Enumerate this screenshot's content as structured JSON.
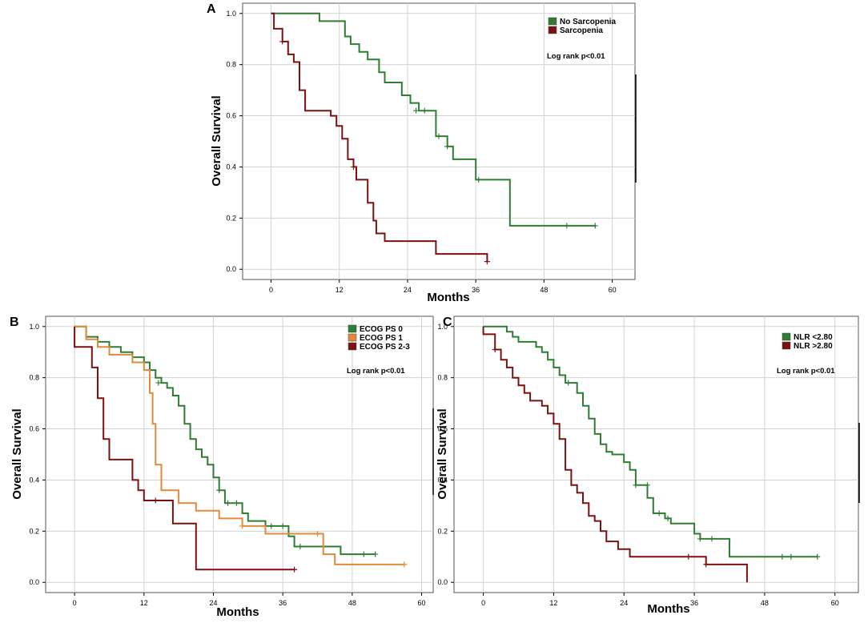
{
  "colors": {
    "green": "#2e7d32",
    "dark_red": "#7b1111",
    "orange": "#e08a3c",
    "grid": "#d2d2d2",
    "frame": "#555555"
  },
  "chart_data": [
    {
      "id": "A",
      "type": "line",
      "subtype": "kaplan-meier",
      "panel_label": "A",
      "xlabel": "Months",
      "ylabel": "Overall Survival",
      "xlim": [
        -5,
        64
      ],
      "ylim": [
        -0.04,
        1.04
      ],
      "xticks": [
        0,
        12,
        24,
        36,
        48,
        60
      ],
      "xtick_labels": [
        "0",
        "12",
        "24",
        "36",
        "48",
        "60"
      ],
      "yticks": [
        0.0,
        0.2,
        0.4,
        0.6,
        0.8,
        1.0
      ],
      "ytick_labels": [
        "0.0",
        "0.2",
        "0.4",
        "0.6",
        "0.8",
        "1.0"
      ],
      "grid": true,
      "legend_position": "top-right",
      "annotation": "Log rank p<0.01",
      "series": [
        {
          "name": "No Sarcopenia",
          "color_key": "green",
          "steps": [
            [
              0,
              1.0
            ],
            [
              8.5,
              0.97
            ],
            [
              13,
              0.91
            ],
            [
              14,
              0.88
            ],
            [
              15.5,
              0.85
            ],
            [
              17,
              0.82
            ],
            [
              19,
              0.77
            ],
            [
              20,
              0.73
            ],
            [
              23,
              0.68
            ],
            [
              24.5,
              0.65
            ],
            [
              26,
              0.62
            ],
            [
              29,
              0.52
            ],
            [
              31,
              0.48
            ],
            [
              32,
              0.43
            ],
            [
              36,
              0.35
            ],
            [
              42,
              0.17
            ],
            [
              57,
              0.17
            ]
          ],
          "censors": [
            [
              25.5,
              0.62
            ],
            [
              27,
              0.62
            ],
            [
              29.5,
              0.52
            ],
            [
              31,
              0.48
            ],
            [
              36.5,
              0.35
            ],
            [
              52,
              0.17
            ],
            [
              57,
              0.17
            ]
          ]
        },
        {
          "name": "Sarcopenia",
          "color_key": "dark_red",
          "steps": [
            [
              0,
              1.0
            ],
            [
              0.5,
              0.94
            ],
            [
              2,
              0.89
            ],
            [
              3,
              0.84
            ],
            [
              4,
              0.81
            ],
            [
              5,
              0.7
            ],
            [
              6,
              0.62
            ],
            [
              10.5,
              0.6
            ],
            [
              11.5,
              0.56
            ],
            [
              12.5,
              0.51
            ],
            [
              13.5,
              0.43
            ],
            [
              14.5,
              0.4
            ],
            [
              15,
              0.35
            ],
            [
              17,
              0.26
            ],
            [
              18,
              0.19
            ],
            [
              18.5,
              0.14
            ],
            [
              20,
              0.11
            ],
            [
              29,
              0.06
            ],
            [
              38,
              0.06
            ],
            [
              38,
              0.03
            ]
          ],
          "censors": [
            [
              2,
              0.89
            ],
            [
              14.5,
              0.4
            ],
            [
              38,
              0.03
            ]
          ]
        }
      ]
    },
    {
      "id": "B",
      "type": "line",
      "subtype": "kaplan-meier",
      "panel_label": "B",
      "xlabel": "Months",
      "ylabel": "Overall Survival",
      "xlim": [
        -5,
        62
      ],
      "ylim": [
        -0.04,
        1.04
      ],
      "xticks": [
        0,
        12,
        24,
        36,
        48,
        60
      ],
      "xtick_labels": [
        "0",
        "12",
        "24",
        "36",
        "48",
        "60"
      ],
      "yticks": [
        0.0,
        0.2,
        0.4,
        0.6,
        0.8,
        1.0
      ],
      "ytick_labels": [
        "0.0",
        "0.2",
        "0.4",
        "0.6",
        "0.8",
        "1.0"
      ],
      "grid": true,
      "legend_position": "top-right",
      "annotation": "Log rank p<0.01",
      "series": [
        {
          "name": "ECOG PS 0",
          "color_key": "green",
          "steps": [
            [
              0,
              1.0
            ],
            [
              2,
              0.96
            ],
            [
              4,
              0.94
            ],
            [
              6,
              0.92
            ],
            [
              8,
              0.9
            ],
            [
              10,
              0.88
            ],
            [
              12,
              0.86
            ],
            [
              13,
              0.83
            ],
            [
              14,
              0.8
            ],
            [
              15,
              0.78
            ],
            [
              16,
              0.76
            ],
            [
              17,
              0.73
            ],
            [
              18,
              0.69
            ],
            [
              19,
              0.62
            ],
            [
              20,
              0.56
            ],
            [
              21,
              0.52
            ],
            [
              22,
              0.49
            ],
            [
              23,
              0.46
            ],
            [
              24,
              0.41
            ],
            [
              25,
              0.36
            ],
            [
              26,
              0.31
            ],
            [
              29,
              0.27
            ],
            [
              30,
              0.24
            ],
            [
              33,
              0.22
            ],
            [
              37,
              0.18
            ],
            [
              38,
              0.14
            ],
            [
              46,
              0.11
            ],
            [
              52,
              0.11
            ]
          ],
          "censors": [
            [
              14.5,
              0.78
            ],
            [
              25,
              0.36
            ],
            [
              26.5,
              0.31
            ],
            [
              28,
              0.31
            ],
            [
              34,
              0.22
            ],
            [
              36,
              0.22
            ],
            [
              39,
              0.14
            ],
            [
              50,
              0.11
            ],
            [
              52,
              0.11
            ]
          ]
        },
        {
          "name": "ECOG PS 1",
          "color_key": "orange",
          "steps": [
            [
              0,
              1.0
            ],
            [
              2,
              0.95
            ],
            [
              4,
              0.92
            ],
            [
              6,
              0.89
            ],
            [
              10,
              0.86
            ],
            [
              12,
              0.83
            ],
            [
              13,
              0.74
            ],
            [
              13.5,
              0.62
            ],
            [
              14,
              0.46
            ],
            [
              15,
              0.36
            ],
            [
              18,
              0.31
            ],
            [
              21,
              0.28
            ],
            [
              25,
              0.25
            ],
            [
              29,
              0.22
            ],
            [
              33,
              0.19
            ],
            [
              43,
              0.11
            ],
            [
              45,
              0.07
            ],
            [
              57,
              0.07
            ]
          ],
          "censors": [
            [
              29,
              0.22
            ],
            [
              42,
              0.19
            ],
            [
              57,
              0.07
            ]
          ]
        },
        {
          "name": "ECOG PS 2-3",
          "color_key": "dark_red",
          "steps": [
            [
              0,
              1.0
            ],
            [
              0,
              0.92
            ],
            [
              3,
              0.84
            ],
            [
              4,
              0.72
            ],
            [
              5,
              0.56
            ],
            [
              6,
              0.48
            ],
            [
              10,
              0.4
            ],
            [
              11,
              0.36
            ],
            [
              12,
              0.32
            ],
            [
              17,
              0.23
            ],
            [
              21,
              0.05
            ],
            [
              38,
              0.05
            ]
          ],
          "censors": [
            [
              14,
              0.32
            ],
            [
              38,
              0.05
            ]
          ]
        }
      ]
    },
    {
      "id": "C",
      "type": "line",
      "subtype": "kaplan-meier",
      "panel_label": "C",
      "xlabel": "Months",
      "ylabel": "Overall Survival",
      "xlim": [
        -5,
        64
      ],
      "ylim": [
        -0.04,
        1.04
      ],
      "xticks": [
        0,
        12,
        24,
        36,
        48,
        60
      ],
      "xtick_labels": [
        "0",
        "12",
        "24",
        "36",
        "48",
        "60"
      ],
      "yticks": [
        0.0,
        0.2,
        0.4,
        0.6,
        0.8,
        1.0
      ],
      "ytick_labels": [
        "0.0",
        "0.2",
        "0.4",
        "0.6",
        "0.8",
        "1.0"
      ],
      "grid": true,
      "legend_position": "top-right",
      "annotation": "Log rank p<0.01",
      "series": [
        {
          "name": "NLR <2.80",
          "color_key": "green",
          "steps": [
            [
              0,
              1.0
            ],
            [
              4,
              0.98
            ],
            [
              5,
              0.96
            ],
            [
              6,
              0.94
            ],
            [
              9,
              0.92
            ],
            [
              10,
              0.9
            ],
            [
              11,
              0.87
            ],
            [
              12,
              0.84
            ],
            [
              13,
              0.81
            ],
            [
              14,
              0.78
            ],
            [
              16,
              0.74
            ],
            [
              17,
              0.69
            ],
            [
              18,
              0.64
            ],
            [
              19,
              0.58
            ],
            [
              20,
              0.54
            ],
            [
              21,
              0.51
            ],
            [
              22,
              0.5
            ],
            [
              24,
              0.47
            ],
            [
              25,
              0.44
            ],
            [
              26,
              0.38
            ],
            [
              28,
              0.33
            ],
            [
              29,
              0.27
            ],
            [
              31,
              0.25
            ],
            [
              32,
              0.23
            ],
            [
              36,
              0.19
            ],
            [
              37,
              0.17
            ],
            [
              42,
              0.1
            ],
            [
              57,
              0.1
            ]
          ],
          "censors": [
            [
              14.5,
              0.78
            ],
            [
              26,
              0.38
            ],
            [
              28,
              0.38
            ],
            [
              30,
              0.27
            ],
            [
              31.5,
              0.25
            ],
            [
              37,
              0.17
            ],
            [
              39,
              0.17
            ],
            [
              51,
              0.1
            ],
            [
              52.5,
              0.1
            ],
            [
              57,
              0.1
            ]
          ]
        },
        {
          "name": "NLR >2.80",
          "color_key": "dark_red",
          "steps": [
            [
              0,
              1.0
            ],
            [
              0,
              0.97
            ],
            [
              2,
              0.91
            ],
            [
              3,
              0.87
            ],
            [
              4,
              0.84
            ],
            [
              5,
              0.8
            ],
            [
              6,
              0.77
            ],
            [
              7,
              0.74
            ],
            [
              8,
              0.71
            ],
            [
              10,
              0.69
            ],
            [
              11,
              0.66
            ],
            [
              12,
              0.62
            ],
            [
              13,
              0.56
            ],
            [
              14,
              0.44
            ],
            [
              15,
              0.38
            ],
            [
              16,
              0.35
            ],
            [
              17,
              0.31
            ],
            [
              18,
              0.26
            ],
            [
              19,
              0.24
            ],
            [
              20,
              0.2
            ],
            [
              21,
              0.16
            ],
            [
              23,
              0.13
            ],
            [
              25,
              0.1
            ],
            [
              38,
              0.07
            ],
            [
              45,
              0.07
            ],
            [
              45,
              0.0
            ]
          ],
          "censors": [
            [
              2,
              0.91
            ],
            [
              35,
              0.1
            ],
            [
              38,
              0.07
            ]
          ]
        }
      ]
    }
  ]
}
